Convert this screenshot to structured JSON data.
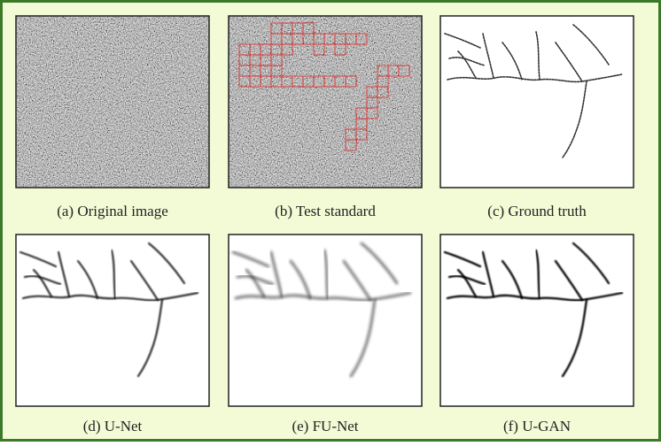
{
  "panels": [
    {
      "caption": "(a) Original image"
    },
    {
      "caption": "(b) Test standard"
    },
    {
      "caption": "(c) Ground truth"
    },
    {
      "caption": "(d) U-Net"
    },
    {
      "caption": "(e) FU-Net"
    },
    {
      "caption": "(f) U-GAN"
    }
  ]
}
